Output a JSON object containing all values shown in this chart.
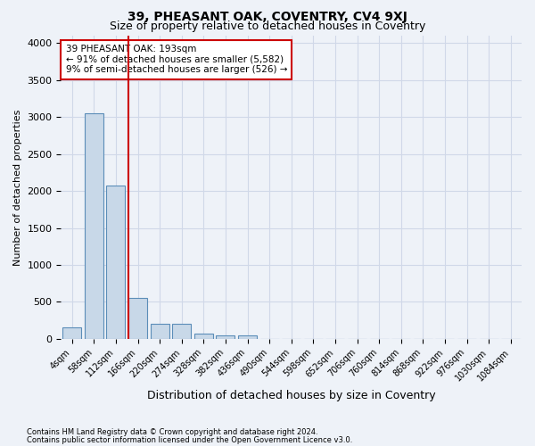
{
  "title1": "39, PHEASANT OAK, COVENTRY, CV4 9XJ",
  "title2": "Size of property relative to detached houses in Coventry",
  "xlabel": "Distribution of detached houses by size in Coventry",
  "ylabel": "Number of detached properties",
  "bin_labels": [
    "4sqm",
    "58sqm",
    "112sqm",
    "166sqm",
    "220sqm",
    "274sqm",
    "328sqm",
    "382sqm",
    "436sqm",
    "490sqm",
    "544sqm",
    "598sqm",
    "652sqm",
    "706sqm",
    "760sqm",
    "814sqm",
    "868sqm",
    "922sqm",
    "976sqm",
    "1030sqm",
    "1084sqm"
  ],
  "bar_values": [
    150,
    3050,
    2075,
    550,
    200,
    200,
    75,
    50,
    50,
    0,
    0,
    0,
    0,
    0,
    0,
    0,
    0,
    0,
    0,
    0,
    0
  ],
  "bar_color": "#c8d8e8",
  "bar_edge_color": "#5b8db8",
  "grid_color": "#d0d8e8",
  "bg_color": "#eef2f8",
  "red_line_x": 2.575,
  "annotation_text": "39 PHEASANT OAK: 193sqm\n← 91% of detached houses are smaller (5,582)\n9% of semi-detached houses are larger (526) →",
  "annotation_box_color": "#ffffff",
  "annotation_box_edge": "#cc0000",
  "footer1": "Contains HM Land Registry data © Crown copyright and database right 2024.",
  "footer2": "Contains public sector information licensed under the Open Government Licence v3.0.",
  "ylim": [
    0,
    4100
  ],
  "yticks": [
    0,
    500,
    1000,
    1500,
    2000,
    2500,
    3000,
    3500,
    4000
  ]
}
